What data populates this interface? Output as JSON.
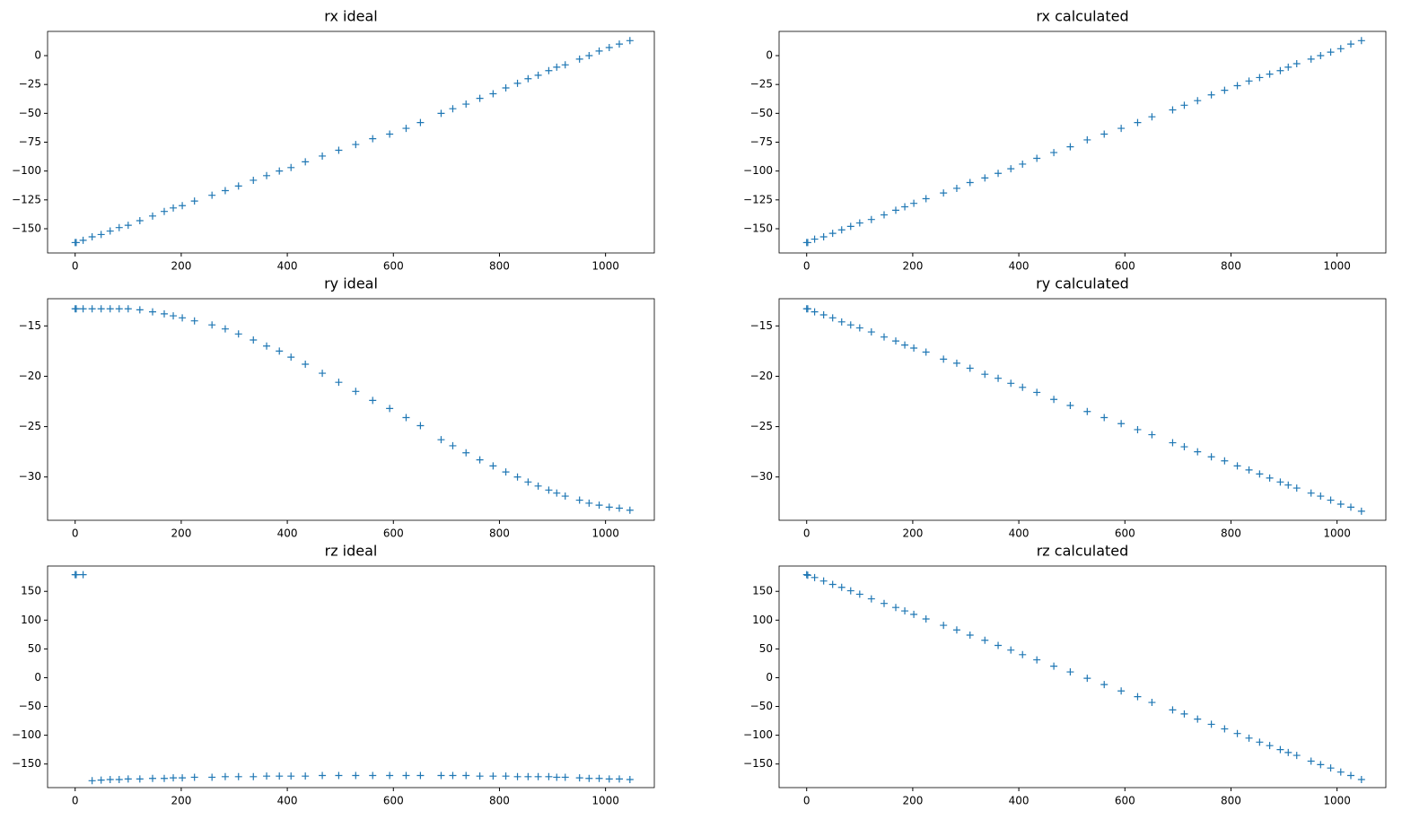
{
  "chart_data": [
    {
      "type": "scatter",
      "title": "rx ideal",
      "marker": "+",
      "color": "#1f77b4",
      "x": [
        0,
        2,
        15,
        32,
        49,
        66,
        83,
        100,
        122,
        146,
        168,
        185,
        202,
        225,
        258,
        283,
        308,
        336,
        361,
        385,
        407,
        434,
        466,
        497,
        529,
        561,
        593,
        624,
        651,
        690,
        712,
        737,
        763,
        788,
        812,
        834,
        854,
        873,
        893,
        908,
        924,
        951,
        969,
        988,
        1007,
        1026,
        1046
      ],
      "values": [
        -162,
        -162,
        -160,
        -157,
        -155,
        -152,
        -149,
        -147,
        -143,
        -139,
        -135,
        -132,
        -130,
        -126,
        -121,
        -117,
        -113,
        -108,
        -104,
        -100,
        -97,
        -92,
        -87,
        -82,
        -77,
        -72,
        -68,
        -63,
        -58,
        -50,
        -46,
        -42,
        -37,
        -33,
        -28,
        -24,
        -20,
        -17,
        -13,
        -10,
        -8,
        -3,
        0,
        4,
        7,
        10,
        13
      ],
      "xlim": [
        -52,
        1092
      ],
      "xticks": [
        0,
        200,
        400,
        600,
        800,
        1000
      ],
      "ylim": [
        -171,
        21
      ],
      "yticks": [
        {
          "value": -150,
          "label": "−150"
        },
        {
          "value": -125,
          "label": "−125"
        },
        {
          "value": -100,
          "label": "−100"
        },
        {
          "value": -75,
          "label": "−75"
        },
        {
          "value": -50,
          "label": "−50"
        },
        {
          "value": -25,
          "label": "−25"
        },
        0
      ]
    },
    {
      "type": "scatter",
      "title": "rx calculated",
      "marker": "+",
      "color": "#1f77b4",
      "x": [
        0,
        2,
        15,
        32,
        49,
        66,
        83,
        100,
        122,
        146,
        168,
        185,
        202,
        225,
        258,
        283,
        308,
        336,
        361,
        385,
        407,
        434,
        466,
        497,
        529,
        561,
        593,
        624,
        651,
        690,
        712,
        737,
        763,
        788,
        812,
        834,
        854,
        873,
        893,
        908,
        924,
        951,
        969,
        988,
        1007,
        1026,
        1046
      ],
      "values": [
        -162,
        -162,
        -159,
        -157,
        -154,
        -151,
        -148,
        -145,
        -142,
        -138,
        -134,
        -131,
        -128,
        -124,
        -119,
        -115,
        -110,
        -106,
        -102,
        -98,
        -94,
        -89,
        -84,
        -79,
        -73,
        -68,
        -63,
        -58,
        -53,
        -47,
        -43,
        -39,
        -34,
        -30,
        -26,
        -22,
        -19,
        -16,
        -13,
        -10,
        -7,
        -3,
        0,
        3,
        6,
        10,
        13
      ],
      "xlim": [
        -52,
        1092
      ],
      "xticks": [
        0,
        200,
        400,
        600,
        800,
        1000
      ],
      "ylim": [
        -171,
        21
      ],
      "yticks": [
        {
          "value": -150,
          "label": "−150"
        },
        {
          "value": -125,
          "label": "−125"
        },
        {
          "value": -100,
          "label": "−100"
        },
        {
          "value": -75,
          "label": "−75"
        },
        {
          "value": -50,
          "label": "−50"
        },
        {
          "value": -25,
          "label": "−25"
        },
        0
      ]
    },
    {
      "type": "scatter",
      "title": "ry ideal",
      "marker": "+",
      "color": "#1f77b4",
      "x": [
        0,
        2,
        15,
        32,
        49,
        66,
        83,
        100,
        122,
        146,
        168,
        185,
        202,
        225,
        258,
        283,
        308,
        336,
        361,
        385,
        407,
        434,
        466,
        497,
        529,
        561,
        593,
        624,
        651,
        690,
        712,
        737,
        763,
        788,
        812,
        834,
        854,
        873,
        893,
        908,
        924,
        951,
        969,
        988,
        1007,
        1026,
        1046
      ],
      "values": [
        -13.3,
        -13.3,
        -13.3,
        -13.3,
        -13.3,
        -13.3,
        -13.3,
        -13.3,
        -13.4,
        -13.6,
        -13.8,
        -14,
        -14.2,
        -14.5,
        -14.9,
        -15.3,
        -15.8,
        -16.4,
        -17,
        -17.5,
        -18.1,
        -18.8,
        -19.7,
        -20.6,
        -21.5,
        -22.4,
        -23.2,
        -24.1,
        -24.9,
        -26.3,
        -26.9,
        -27.6,
        -28.3,
        -28.9,
        -29.5,
        -30,
        -30.5,
        -30.9,
        -31.3,
        -31.6,
        -31.9,
        -32.3,
        -32.6,
        -32.8,
        -33,
        -33.1,
        -33.3
      ],
      "xlim": [
        -52,
        1092
      ],
      "xticks": [
        0,
        200,
        400,
        600,
        800,
        1000
      ],
      "ylim": [
        -34.3,
        -12.3
      ],
      "yticks": [
        {
          "value": -30,
          "label": "−30"
        },
        {
          "value": -25,
          "label": "−25"
        },
        {
          "value": -20,
          "label": "−20"
        },
        {
          "value": -15,
          "label": "−15"
        }
      ]
    },
    {
      "type": "scatter",
      "title": "ry calculated",
      "marker": "+",
      "color": "#1f77b4",
      "x": [
        0,
        2,
        15,
        32,
        49,
        66,
        83,
        100,
        122,
        146,
        168,
        185,
        202,
        225,
        258,
        283,
        308,
        336,
        361,
        385,
        407,
        434,
        466,
        497,
        529,
        561,
        593,
        624,
        651,
        690,
        712,
        737,
        763,
        788,
        812,
        834,
        854,
        873,
        893,
        908,
        924,
        951,
        969,
        988,
        1007,
        1026,
        1046
      ],
      "values": [
        -13.3,
        -13.3,
        -13.6,
        -13.9,
        -14.2,
        -14.6,
        -14.9,
        -15.2,
        -15.6,
        -16.1,
        -16.5,
        -16.9,
        -17.2,
        -17.6,
        -18.3,
        -18.7,
        -19.2,
        -19.8,
        -20.2,
        -20.7,
        -21.1,
        -21.6,
        -22.3,
        -22.9,
        -23.5,
        -24.1,
        -24.7,
        -25.3,
        -25.8,
        -26.6,
        -27,
        -27.5,
        -28,
        -28.4,
        -28.9,
        -29.3,
        -29.7,
        -30.1,
        -30.5,
        -30.8,
        -31.1,
        -31.6,
        -31.9,
        -32.3,
        -32.7,
        -33,
        -33.4
      ],
      "xlim": [
        -52,
        1092
      ],
      "xticks": [
        0,
        200,
        400,
        600,
        800,
        1000
      ],
      "ylim": [
        -34.3,
        -12.3
      ],
      "yticks": [
        {
          "value": -30,
          "label": "−30"
        },
        {
          "value": -25,
          "label": "−25"
        },
        {
          "value": -20,
          "label": "−20"
        },
        {
          "value": -15,
          "label": "−15"
        }
      ]
    },
    {
      "type": "scatter",
      "title": "rz ideal",
      "marker": "+",
      "color": "#1f77b4",
      "x": [
        0,
        2,
        15,
        32,
        49,
        66,
        83,
        100,
        122,
        146,
        168,
        185,
        202,
        225,
        258,
        283,
        308,
        336,
        361,
        385,
        407,
        434,
        466,
        497,
        529,
        561,
        593,
        624,
        651,
        690,
        712,
        737,
        763,
        788,
        812,
        834,
        854,
        873,
        893,
        908,
        924,
        951,
        969,
        988,
        1007,
        1026,
        1046
      ],
      "values": [
        179,
        179,
        179,
        -179,
        -178,
        -177,
        -177,
        -176,
        -176,
        -175,
        -175,
        -174,
        -174,
        -173,
        -173,
        -172,
        -172,
        -172,
        -171,
        -171,
        -171,
        -171,
        -170,
        -170,
        -170,
        -170,
        -170,
        -170,
        -170,
        -170,
        -170,
        -170,
        -171,
        -171,
        -171,
        -172,
        -172,
        -172,
        -172,
        -173,
        -173,
        -174,
        -175,
        -175,
        -176,
        -176,
        -177
      ],
      "xlim": [
        -52,
        1092
      ],
      "xticks": [
        0,
        200,
        400,
        600,
        800,
        1000
      ],
      "ylim": [
        -191,
        194
      ],
      "yticks": [
        {
          "value": -150,
          "label": "−150"
        },
        {
          "value": -100,
          "label": "−100"
        },
        {
          "value": -50,
          "label": "−50"
        },
        0,
        50,
        100,
        150
      ]
    },
    {
      "type": "scatter",
      "title": "rz calculated",
      "marker": "+",
      "color": "#1f77b4",
      "x": [
        0,
        2,
        15,
        32,
        49,
        66,
        83,
        100,
        122,
        146,
        168,
        185,
        202,
        225,
        258,
        283,
        308,
        336,
        361,
        385,
        407,
        434,
        466,
        497,
        529,
        561,
        593,
        624,
        651,
        690,
        712,
        737,
        763,
        788,
        812,
        834,
        854,
        873,
        893,
        908,
        924,
        951,
        969,
        988,
        1007,
        1026,
        1046
      ],
      "values": [
        179,
        178,
        174,
        168,
        162,
        157,
        151,
        145,
        137,
        129,
        122,
        116,
        110,
        102,
        91,
        83,
        74,
        65,
        56,
        48,
        40,
        31,
        20,
        10,
        -1,
        -12,
        -23,
        -33,
        -43,
        -56,
        -63,
        -72,
        -81,
        -89,
        -97,
        -105,
        -112,
        -118,
        -125,
        -130,
        -135,
        -145,
        -151,
        -157,
        -164,
        -170,
        -177
      ],
      "xlim": [
        -52,
        1092
      ],
      "xticks": [
        0,
        200,
        400,
        600,
        800,
        1000
      ],
      "ylim": [
        -191,
        194
      ],
      "yticks": [
        {
          "value": -150,
          "label": "−150"
        },
        {
          "value": -100,
          "label": "−100"
        },
        {
          "value": -50,
          "label": "−50"
        },
        0,
        50,
        100,
        150
      ]
    }
  ]
}
